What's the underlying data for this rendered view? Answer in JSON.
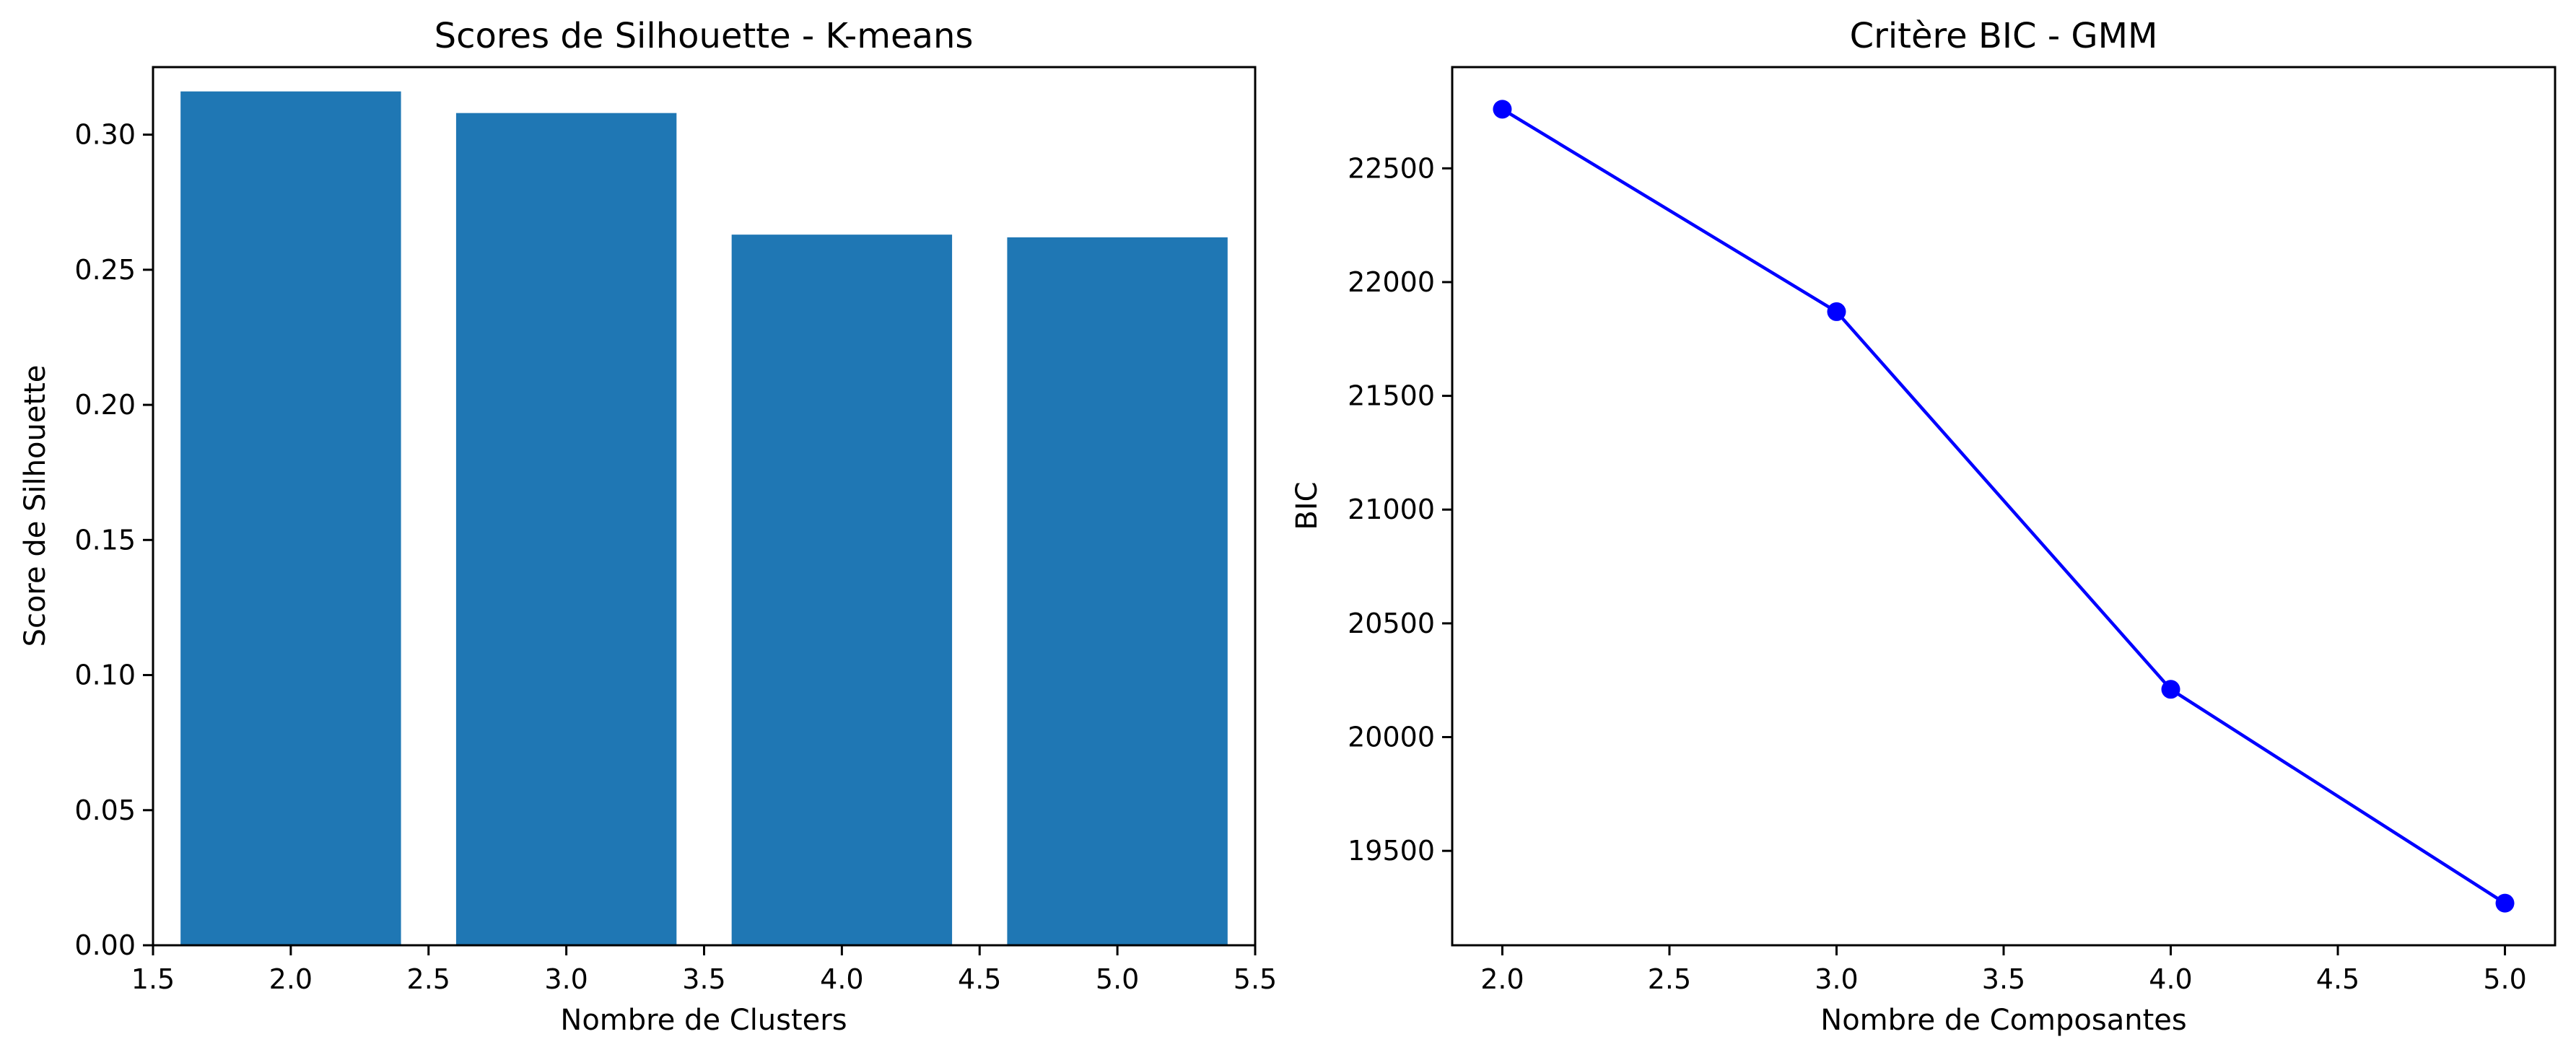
{
  "chart_data": [
    {
      "type": "bar",
      "title": "Scores de Silhouette - K-means",
      "xlabel": "Nombre de Clusters",
      "ylabel": "Score de Silhouette",
      "x": [
        2,
        3,
        4,
        5
      ],
      "values": [
        0.316,
        0.308,
        0.263,
        0.262
      ],
      "bar_width": 0.8,
      "xlim": [
        1.5,
        5.5
      ],
      "ylim": [
        0,
        0.325
      ],
      "xticks": [
        1.5,
        2.0,
        2.5,
        3.0,
        3.5,
        4.0,
        4.5,
        5.0,
        5.5
      ],
      "xtick_labels": [
        "1.5",
        "2.0",
        "2.5",
        "3.0",
        "3.5",
        "4.0",
        "4.5",
        "5.0",
        "5.5"
      ],
      "yticks": [
        0,
        0.05,
        0.1,
        0.15,
        0.2,
        0.25,
        0.3
      ],
      "ytick_labels": [
        "0.00",
        "0.05",
        "0.10",
        "0.15",
        "0.20",
        "0.25",
        "0.30"
      ],
      "color": "#1f77b4",
      "grid": false
    },
    {
      "type": "line",
      "title": "Critère BIC - GMM",
      "xlabel": "Nombre de Composantes",
      "ylabel": "BIC",
      "x": [
        2,
        3,
        4,
        5
      ],
      "values": [
        22760,
        21870,
        20210,
        19270
      ],
      "markers": true,
      "xlim": [
        1.85,
        5.15
      ],
      "ylim": [
        19085,
        22945
      ],
      "xticks": [
        2.0,
        2.5,
        3.0,
        3.5,
        4.0,
        4.5,
        5.0
      ],
      "xtick_labels": [
        "2.0",
        "2.5",
        "3.0",
        "3.5",
        "4.0",
        "4.5",
        "5.0"
      ],
      "yticks": [
        19500,
        20000,
        20500,
        21000,
        21500,
        22000,
        22500
      ],
      "ytick_labels": [
        "19500",
        "20000",
        "20500",
        "21000",
        "21500",
        "22000",
        "22500"
      ],
      "color": "#0000ff",
      "grid": false
    }
  ]
}
